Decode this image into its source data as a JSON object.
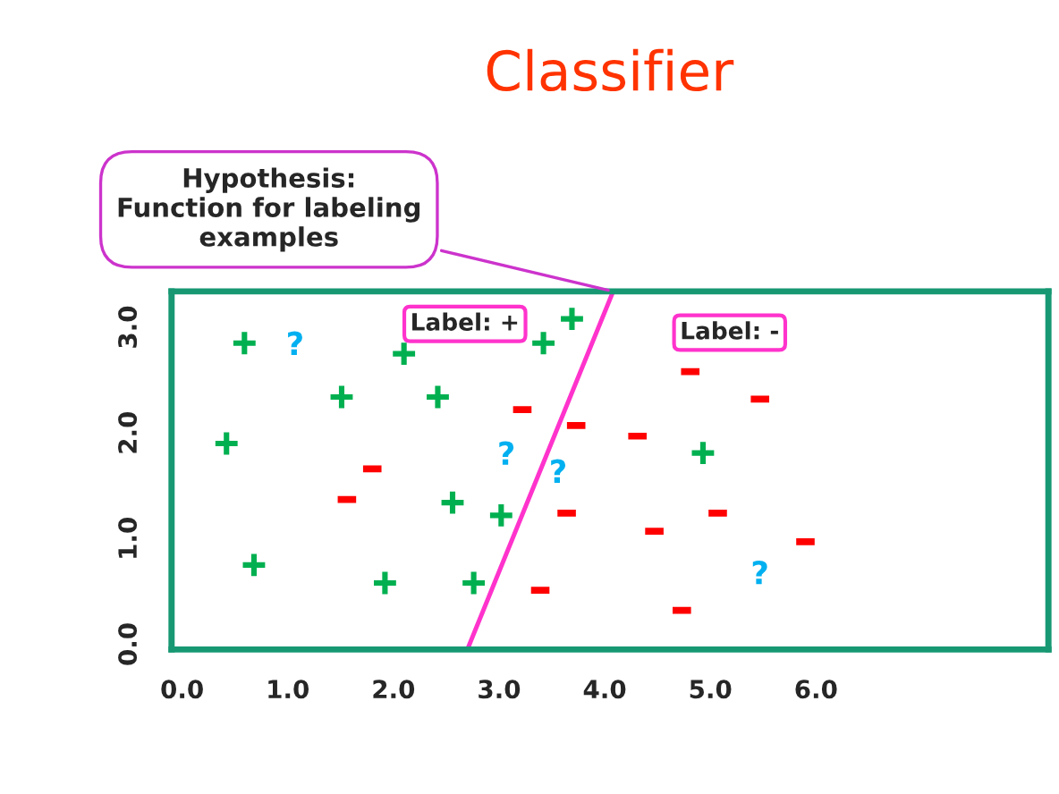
{
  "chart_data": {
    "type": "scatter",
    "title": "Classifier",
    "xlim": [
      -0.1,
      8.2
    ],
    "ylim": [
      -0.05,
      3.34
    ],
    "xticks": [
      {
        "value": 0,
        "label": "0.0"
      },
      {
        "value": 1,
        "label": "1.0"
      },
      {
        "value": 2,
        "label": "2.0"
      },
      {
        "value": 3,
        "label": "3.0"
      },
      {
        "value": 4,
        "label": "4.0"
      },
      {
        "value": 5,
        "label": "5.0"
      },
      {
        "value": 6,
        "label": "6.0"
      }
    ],
    "yticks": [
      {
        "value": 0,
        "label": "0.0"
      },
      {
        "value": 1,
        "label": "1.0"
      },
      {
        "value": 2,
        "label": "2.0"
      },
      {
        "value": 3,
        "label": "3.0"
      }
    ],
    "grid": false,
    "legend": false,
    "series": [
      {
        "type": "scatter",
        "marker": "cross",
        "color": "#00b050",
        "x": [
          0.59,
          1.51,
          2.42,
          0.42,
          2.1,
          3.42,
          3.69,
          2.56,
          3.02,
          0.68,
          1.92,
          2.76,
          4.93
        ],
        "values": [
          2.85,
          2.34,
          2.34,
          1.9,
          2.75,
          2.85,
          3.08,
          1.34,
          1.22,
          0.75,
          0.58,
          0.58,
          1.81
        ]
      },
      {
        "type": "scatter",
        "color": "#ff0000",
        "x": [
          1.8,
          1.56,
          3.22,
          3.73,
          3.39,
          3.64,
          4.31,
          4.81,
          5.47,
          4.47,
          5.07,
          5.9,
          4.73
        ],
        "values": [
          1.66,
          1.37,
          2.22,
          2.07,
          0.51,
          1.24,
          1.97,
          2.58,
          2.32,
          1.07,
          1.24,
          0.97,
          0.32
        ]
      },
      {
        "type": "scatter",
        "color": "#00b0f0",
        "x": [
          1.07,
          3.07,
          3.56,
          5.47
        ],
        "values": [
          2.85,
          1.81,
          1.64,
          0.68
        ]
      },
      {
        "type": "line",
        "color": "#ff33cc",
        "x": [
          2.7,
          4.08
        ],
        "values": [
          -0.05,
          3.34
        ]
      }
    ],
    "annotations": [
      {
        "text": "Hypothesis:\nFunction for labeling\nexamples",
        "x": 4.08,
        "y": 3.34
      },
      "Label: +",
      "Label: -"
    ]
  }
}
